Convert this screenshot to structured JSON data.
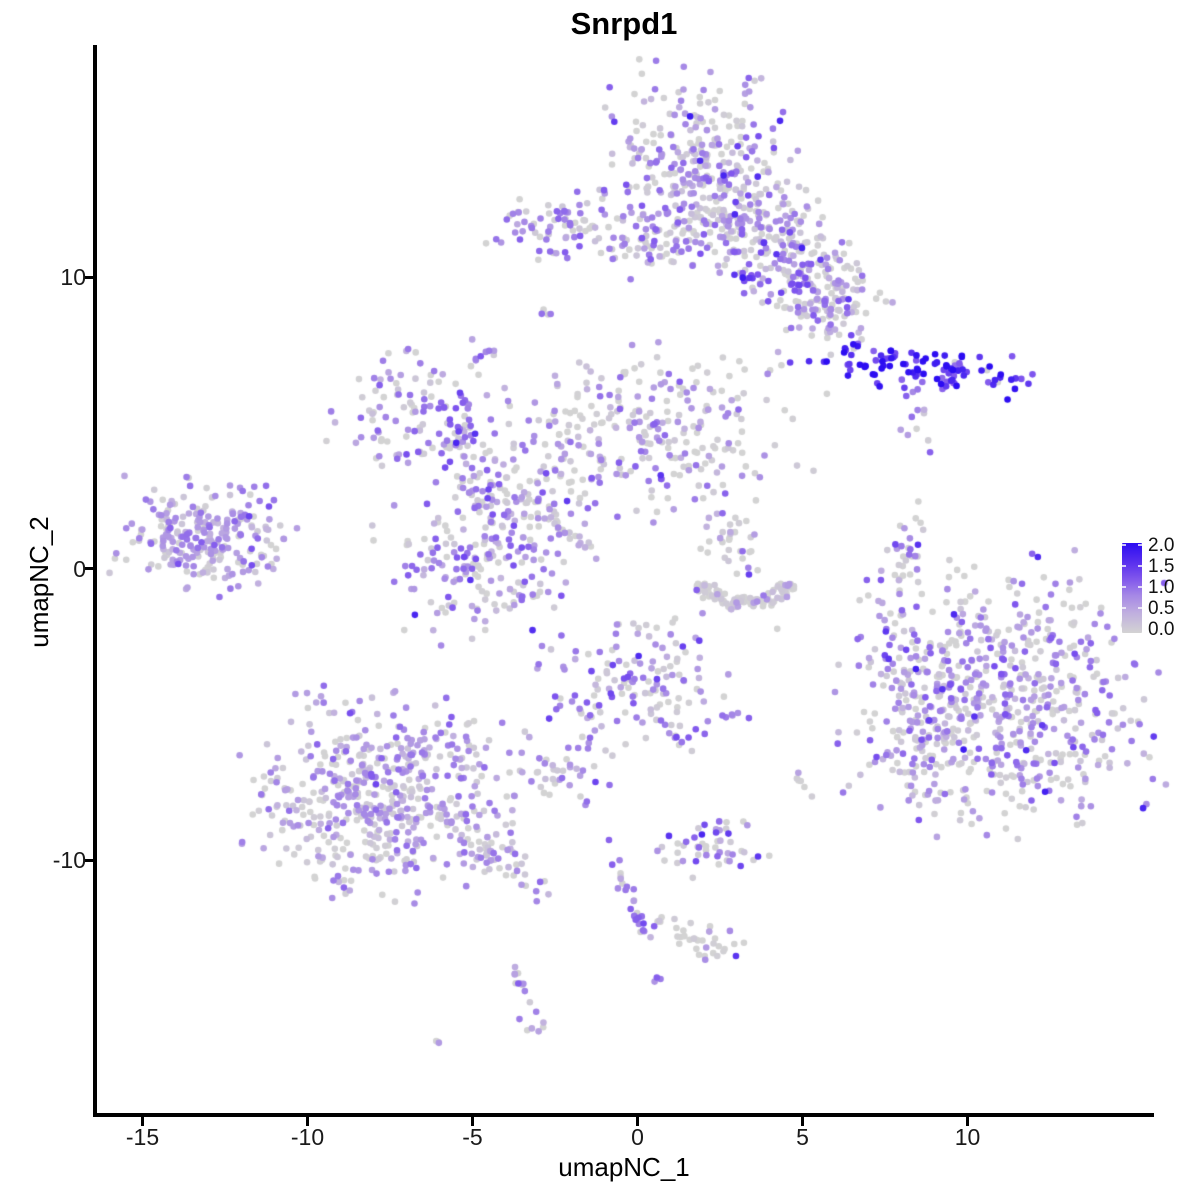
{
  "title": "Snrpd1",
  "axes": {
    "xlabel": "umapNC_1",
    "ylabel": "umapNC_2",
    "x_tick_labels": [
      "-15",
      "-10",
      "-5",
      "0",
      "5",
      "10"
    ],
    "x_tick_values": [
      -15,
      -10,
      -5,
      0,
      5,
      10
    ],
    "y_tick_labels": [
      "10",
      "0",
      "-10"
    ],
    "y_tick_values": [
      10,
      0,
      -10
    ]
  },
  "legend": {
    "tick_labels": [
      "2.0",
      "1.5",
      "1.0",
      "0.5",
      "0.0"
    ],
    "tick_values": [
      2.0,
      1.5,
      1.0,
      0.5,
      0.0
    ],
    "low_color": "#d3d3d3",
    "high_color": "#2c0cf2"
  },
  "chart_data": {
    "type": "scatter",
    "title": "Snrpd1",
    "xlabel": "umapNC_1",
    "ylabel": "umapNC_2",
    "xlim": [
      -16.4,
      15.6
    ],
    "ylim": [
      -18.8,
      17.9
    ],
    "grid": false,
    "legend_position": "right",
    "color_scale": {
      "type": "gradient",
      "domain": [
        0.0,
        2.0
      ],
      "low": "#d3d3d3",
      "high": "#2c0cf2",
      "ticks": [
        0.0,
        0.5,
        1.0,
        1.5,
        2.0
      ]
    },
    "point_radius_px": 3.3,
    "clusters": [
      {
        "name": "top-main-blob",
        "cx": 1.9,
        "cy": 14.0,
        "sx": 1.35,
        "sy": 1.5,
        "rot": 0,
        "n": 270,
        "grey": 0.5,
        "em": 0.9,
        "es": 0.45
      },
      {
        "name": "top-arm-right",
        "cx": 4.3,
        "cy": 11.3,
        "sx": 1.6,
        "sy": 0.85,
        "rot": -49,
        "n": 190,
        "grey": 0.5,
        "em": 0.95,
        "es": 0.4
      },
      {
        "name": "top-arm-lower",
        "cx": 5.6,
        "cy": 9.3,
        "sx": 1.0,
        "sy": 0.75,
        "rot": -40,
        "n": 110,
        "grey": 0.5,
        "em": 0.95,
        "es": 0.4
      },
      {
        "name": "top-left-band",
        "cx": 1.6,
        "cy": 11.65,
        "sx": 1.6,
        "sy": 0.75,
        "rot": 0,
        "n": 140,
        "grey": 0.55,
        "em": 0.85,
        "es": 0.4
      },
      {
        "name": "top-left-small",
        "cx": -2.35,
        "cy": 11.7,
        "sx": 1.05,
        "sy": 0.55,
        "rot": -8,
        "n": 65,
        "grey": 0.45,
        "em": 1.0,
        "es": 0.35
      },
      {
        "name": "top-left-small-tail",
        "cx": -0.3,
        "cy": 10.9,
        "sx": 0.7,
        "sy": 0.2,
        "rot": 0,
        "n": 12,
        "grey": 0.8,
        "em": 0.4,
        "es": 0.2
      },
      {
        "name": "dark-clump-center-top",
        "cx": 3.3,
        "cy": 10.0,
        "sx": 0.3,
        "sy": 0.25,
        "rot": 0,
        "n": 9,
        "grey": 0.0,
        "em": 1.6,
        "es": 0.25
      },
      {
        "name": "tiny-pair-upper",
        "cx": -2.85,
        "cy": 8.75,
        "sx": 0.25,
        "sy": 0.3,
        "rot": 0,
        "n": 4,
        "grey": 0.4,
        "em": 1.1,
        "es": 0.3
      },
      {
        "name": "small-cluster-left-upper",
        "cx": -4.62,
        "cy": 7.3,
        "sx": 0.28,
        "sy": 0.35,
        "rot": 0,
        "n": 9,
        "grey": 0.25,
        "em": 1.2,
        "es": 0.35
      },
      {
        "name": "single-dot-below",
        "cx": -4.0,
        "cy": 6.1,
        "sx": 0.05,
        "sy": 0.05,
        "rot": 0,
        "n": 1,
        "grey": 0.0,
        "em": 0.5,
        "es": 0.1
      },
      {
        "name": "dark-blue-streak",
        "cx": 8.3,
        "cy": 6.87,
        "sx": 1.7,
        "sy": 0.33,
        "rot": -6,
        "n": 95,
        "grey": 0.06,
        "em": 1.8,
        "es": 0.3
      },
      {
        "name": "dark-blue-streak-end",
        "cx": 9.55,
        "cy": 6.8,
        "sx": 0.35,
        "sy": 0.3,
        "rot": 0,
        "n": 14,
        "grey": 0.15,
        "em": 1.5,
        "es": 0.35
      },
      {
        "name": "streak-chain-below",
        "cx": 8.45,
        "cy": 5.55,
        "sx": 0.15,
        "sy": 0.7,
        "rot": 15,
        "n": 10,
        "grey": 0.3,
        "em": 1.0,
        "es": 0.4
      },
      {
        "name": "dots-below-streak",
        "cx": 8.0,
        "cy": 4.7,
        "sx": 0.12,
        "sy": 0.12,
        "rot": 0,
        "n": 2,
        "grey": 0.5,
        "em": 0.6,
        "es": 0.2
      },
      {
        "name": "branch-upper-left",
        "cx": -7.0,
        "cy": 5.4,
        "sx": 1.05,
        "sy": 0.95,
        "rot": 0,
        "n": 95,
        "grey": 0.35,
        "em": 0.9,
        "es": 0.4
      },
      {
        "name": "branch-dark-streak",
        "cx": -5.25,
        "cy": 4.75,
        "sx": 0.22,
        "sy": 0.75,
        "rot": 0,
        "n": 20,
        "grey": 0.1,
        "em": 1.35,
        "es": 0.3
      },
      {
        "name": "branch-diagonal",
        "cx": -4.6,
        "cy": 2.7,
        "sx": 1.5,
        "sy": 0.5,
        "rot": -65,
        "n": 85,
        "grey": 0.4,
        "em": 0.9,
        "es": 0.4
      },
      {
        "name": "branch-lower-blob",
        "cx": -4.9,
        "cy": 0.2,
        "sx": 1.5,
        "sy": 1.25,
        "rot": 0,
        "n": 160,
        "grey": 0.4,
        "em": 0.9,
        "es": 0.4
      },
      {
        "name": "thin-diagonal-streak",
        "cx": -2.05,
        "cy": 1.2,
        "sx": 1.0,
        "sy": 0.13,
        "rot": -42,
        "n": 26,
        "grey": 0.55,
        "em": 0.6,
        "es": 0.3
      },
      {
        "name": "center-fan",
        "cx": 0.2,
        "cy": 4.7,
        "sx": 2.4,
        "sy": 1.35,
        "rot": 0,
        "n": 290,
        "grey": 0.5,
        "em": 0.85,
        "es": 0.4
      },
      {
        "name": "fan-connector",
        "cx": -3.5,
        "cy": 3.5,
        "sx": 0.7,
        "sy": 1.0,
        "rot": 0,
        "n": 25,
        "grey": 0.5,
        "em": 0.8,
        "es": 0.35
      },
      {
        "name": "far-left-cluster",
        "cx": -13.2,
        "cy": 1.1,
        "sx": 1.25,
        "sy": 0.85,
        "rot": -15,
        "n": 240,
        "grey": 0.3,
        "em": 0.8,
        "es": 0.35
      },
      {
        "name": "far-left-dark-arm",
        "cx": -11.6,
        "cy": 2.4,
        "sx": 0.3,
        "sy": 0.3,
        "rot": -45,
        "n": 10,
        "grey": 0.1,
        "em": 1.3,
        "es": 0.3
      },
      {
        "name": "crescent-arc",
        "type": "arc",
        "cx": 3.27,
        "cy": -0.45,
        "rx": 1.25,
        "ry": 0.75,
        "a0": 185,
        "a1": 355,
        "w": 0.14,
        "n": 110,
        "grey": 0.85,
        "em": 0.8,
        "es": 0.35
      },
      {
        "name": "crescent-upper-scatter",
        "cx": 2.85,
        "cy": 0.8,
        "sx": 0.5,
        "sy": 0.6,
        "rot": 0,
        "n": 30,
        "grey": 0.75,
        "em": 0.9,
        "es": 0.4
      },
      {
        "name": "crescent-dark-dot",
        "cx": 3.4,
        "cy": -0.2,
        "sx": 0.05,
        "sy": 0.05,
        "rot": 0,
        "n": 1,
        "grey": 0.0,
        "em": 1.5,
        "es": 0.1
      },
      {
        "name": "single-grey-dot",
        "cx": 4.2,
        "cy": -2.1,
        "sx": 0.05,
        "sy": 0.05,
        "rot": 0,
        "n": 1,
        "grey": 1.0,
        "em": 0.0,
        "es": 0.0
      },
      {
        "name": "right-vertical-streak",
        "cx": 8.1,
        "cy": 0.1,
        "sx": 0.3,
        "sy": 1.25,
        "rot": -8,
        "n": 42,
        "grey": 0.45,
        "em": 1.0,
        "es": 0.4
      },
      {
        "name": "right-big-cluster",
        "cx": 10.9,
        "cy": -4.4,
        "sx": 2.2,
        "sy": 2.2,
        "rot": 0,
        "n": 620,
        "grey": 0.45,
        "em": 0.95,
        "es": 0.4
      },
      {
        "name": "right-big-fringe",
        "cx": 8.7,
        "cy": -5.3,
        "sx": 0.8,
        "sy": 1.5,
        "rot": 0,
        "n": 90,
        "grey": 0.6,
        "em": 0.8,
        "es": 0.35
      },
      {
        "name": "center-lower-cluster",
        "cx": -0.2,
        "cy": -3.8,
        "sx": 1.35,
        "sy": 1.15,
        "rot": 0,
        "n": 140,
        "grey": 0.45,
        "em": 1.0,
        "es": 0.4
      },
      {
        "name": "center-lower-tail-right",
        "cx": 1.2,
        "cy": -5.8,
        "sx": 0.5,
        "sy": 0.12,
        "rot": -55,
        "n": 8,
        "grey": 0.4,
        "em": 1.0,
        "es": 0.4
      },
      {
        "name": "center-lower-chain-left",
        "cx": -1.43,
        "cy": -5.5,
        "sx": 0.6,
        "sy": 0.1,
        "rot": 60,
        "n": 6,
        "grey": 0.3,
        "em": 1.0,
        "es": 0.3
      },
      {
        "name": "small-cluster-below-center",
        "cx": -2.4,
        "cy": -7.0,
        "sx": 0.65,
        "sy": 0.45,
        "rot": 0,
        "n": 30,
        "grey": 0.55,
        "em": 0.9,
        "es": 0.35
      },
      {
        "name": "single-purple-dot",
        "cx": -0.85,
        "cy": -7.45,
        "sx": 0.05,
        "sy": 0.05,
        "rot": 0,
        "n": 1,
        "grey": 0.0,
        "em": 1.2,
        "es": 0.1
      },
      {
        "name": "purple-streak-right",
        "cx": 2.9,
        "cy": -5.05,
        "sx": 0.3,
        "sy": 0.07,
        "rot": 0,
        "n": 6,
        "grey": 0.1,
        "em": 1.1,
        "es": 0.25
      },
      {
        "name": "single-dot-left-of-streak",
        "cx": 2.2,
        "cy": -5.3,
        "sx": 0.05,
        "sy": 0.05,
        "rot": 0,
        "n": 1,
        "grey": 0.0,
        "em": 1.0,
        "es": 0.1
      },
      {
        "name": "pair-right",
        "cx": 5.05,
        "cy": -7.45,
        "sx": 0.15,
        "sy": 0.3,
        "rot": 0,
        "n": 6,
        "grey": 0.5,
        "em": 0.9,
        "es": 0.3
      },
      {
        "name": "bottom-left-cluster",
        "cx": -7.7,
        "cy": -7.7,
        "sx": 1.9,
        "sy": 1.7,
        "rot": 0,
        "n": 520,
        "grey": 0.45,
        "em": 0.8,
        "es": 0.35
      },
      {
        "name": "bottom-left-tail",
        "cx": -4.6,
        "cy": -9.75,
        "sx": 1.1,
        "sy": 0.35,
        "rot": -40,
        "n": 60,
        "grey": 0.5,
        "em": 0.75,
        "es": 0.35
      },
      {
        "name": "chain-diagonal",
        "cx": -0.45,
        "cy": -10.6,
        "sx": 1.3,
        "sy": 0.13,
        "rot": -68,
        "n": 20,
        "grey": 0.35,
        "em": 1.0,
        "es": 0.35
      },
      {
        "name": "chain-clump",
        "cx": 0.0,
        "cy": -11.9,
        "sx": 0.2,
        "sy": 0.22,
        "rot": 0,
        "n": 8,
        "grey": 0.1,
        "em": 1.2,
        "es": 0.3
      },
      {
        "name": "chain-horizontal",
        "cx": 0.8,
        "cy": -12.0,
        "sx": 0.3,
        "sy": 0.08,
        "rot": 0,
        "n": 5,
        "grey": 0.5,
        "em": 0.8,
        "es": 0.3
      },
      {
        "name": "bottom-mid-clump",
        "cx": 2.1,
        "cy": -12.75,
        "sx": 0.55,
        "sy": 0.3,
        "rot": -20,
        "n": 30,
        "grey": 0.6,
        "em": 0.9,
        "es": 0.35
      },
      {
        "name": "bottom-dots",
        "cx": 0.6,
        "cy": -14.2,
        "sx": 0.1,
        "sy": 0.15,
        "rot": 0,
        "n": 3,
        "grey": 0.2,
        "em": 1.1,
        "es": 0.2
      },
      {
        "name": "bottom-square-clump",
        "cx": 2.3,
        "cy": -9.6,
        "sx": 0.75,
        "sy": 0.45,
        "rot": 0,
        "n": 48,
        "grey": 0.55,
        "em": 1.0,
        "es": 0.4
      },
      {
        "name": "single-above-clump",
        "cx": 2.45,
        "cy": -8.65,
        "sx": 0.05,
        "sy": 0.05,
        "rot": 0,
        "n": 1,
        "grey": 0.0,
        "em": 1.3,
        "es": 0.1
      },
      {
        "name": "bottom-strand",
        "cx": -3.35,
        "cy": -14.7,
        "sx": 0.2,
        "sy": 0.8,
        "rot": 10,
        "n": 18,
        "grey": 0.35,
        "em": 1.0,
        "es": 0.35
      },
      {
        "name": "bottom-pair",
        "cx": -6.05,
        "cy": -16.25,
        "sx": 0.12,
        "sy": 0.1,
        "rot": -40,
        "n": 3,
        "grey": 0.6,
        "em": 0.7,
        "es": 0.2
      }
    ]
  }
}
